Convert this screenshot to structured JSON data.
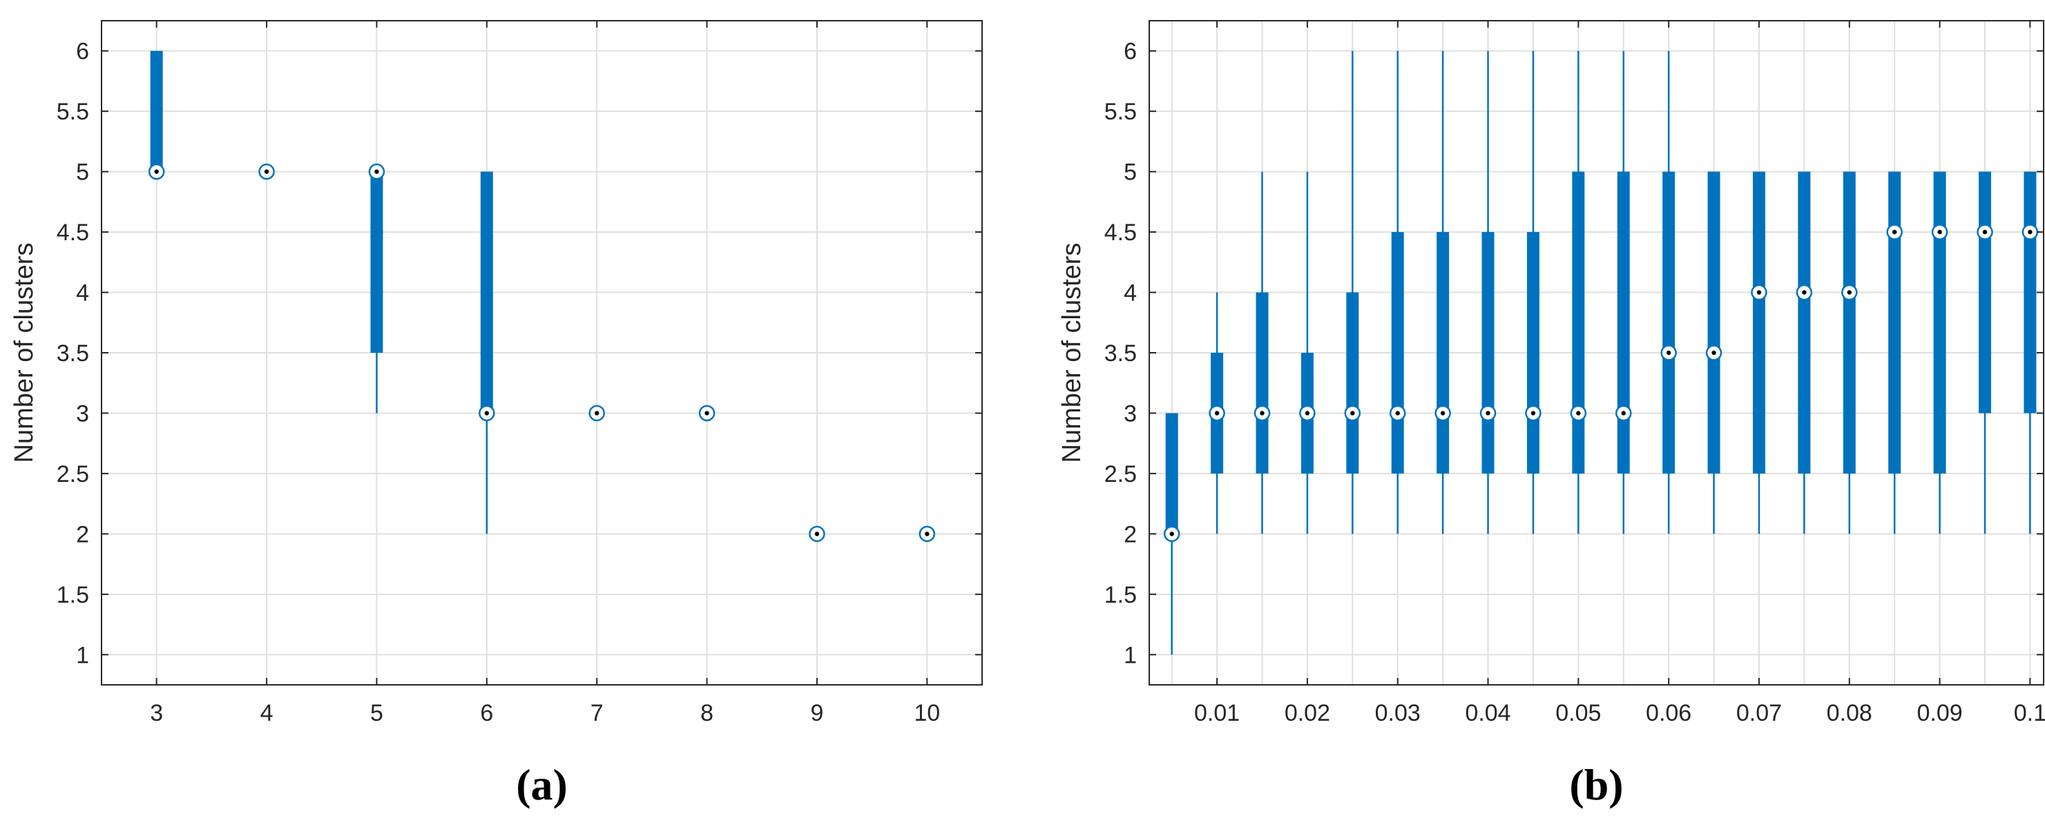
{
  "colors": {
    "box": "#0072BD",
    "grid": "#DFDFDF",
    "axis": "#262626",
    "median_dot": "#000000"
  },
  "chart_data": [
    {
      "type": "box",
      "panel_label": "(a)",
      "xlabel": "",
      "ylabel": "Number of clusters",
      "ylim": [
        0.75,
        6.25
      ],
      "yticks": [
        1,
        1.5,
        2,
        2.5,
        3,
        3.5,
        4,
        4.5,
        5,
        5.5,
        6
      ],
      "ytick_labels": [
        "1",
        "1.5",
        "2",
        "2.5",
        "3",
        "3.5",
        "4",
        "4.5",
        "5",
        "5.5",
        "6"
      ],
      "xlim": [
        2.5,
        10.5
      ],
      "xticks": [
        3,
        4,
        5,
        6,
        7,
        8,
        9,
        10
      ],
      "xtick_labels": [
        "3",
        "4",
        "5",
        "6",
        "7",
        "8",
        "9",
        "10"
      ],
      "grid": true,
      "boxes": [
        {
          "x": 3,
          "min": 5,
          "q1": 5,
          "median": 5,
          "q3": 6,
          "max": 6
        },
        {
          "x": 4,
          "min": 5,
          "q1": 5,
          "median": 5,
          "q3": 5,
          "max": 5
        },
        {
          "x": 5,
          "min": 3,
          "q1": 3.5,
          "median": 5,
          "q3": 5,
          "max": 5
        },
        {
          "x": 6,
          "min": 2,
          "q1": 3,
          "median": 3,
          "q3": 5,
          "max": 5
        },
        {
          "x": 7,
          "min": 3,
          "q1": 3,
          "median": 3,
          "q3": 3,
          "max": 3
        },
        {
          "x": 8,
          "min": 3,
          "q1": 3,
          "median": 3,
          "q3": 3,
          "max": 3
        },
        {
          "x": 9,
          "min": 2,
          "q1": 2,
          "median": 2,
          "q3": 2,
          "max": 2
        },
        {
          "x": 10,
          "min": 2,
          "q1": 2,
          "median": 2,
          "q3": 2,
          "max": 2
        }
      ]
    },
    {
      "type": "box",
      "panel_label": "(b)",
      "xlabel": "",
      "ylabel": "Number of clusters",
      "ylim": [
        0.75,
        6.25
      ],
      "yticks": [
        1,
        1.5,
        2,
        2.5,
        3,
        3.5,
        4,
        4.5,
        5,
        5.5,
        6
      ],
      "ytick_labels": [
        "1",
        "1.5",
        "2",
        "2.5",
        "3",
        "3.5",
        "4",
        "4.5",
        "5",
        "5.5",
        "6"
      ],
      "xlim": [
        0.0025,
        0.1015
      ],
      "xticks": [
        0.01,
        0.02,
        0.03,
        0.04,
        0.05,
        0.06,
        0.07,
        0.08,
        0.09,
        0.1
      ],
      "xtick_labels": [
        "0.01",
        "0.02",
        "0.03",
        "0.04",
        "0.05",
        "0.06",
        "0.07",
        "0.08",
        "0.09",
        "0.1"
      ],
      "minor_grid_x": [
        0.005,
        0.015,
        0.025,
        0.035,
        0.045,
        0.055,
        0.065,
        0.075,
        0.085,
        0.095
      ],
      "grid": true,
      "boxes": [
        {
          "x": 0.005,
          "min": 1,
          "q1": 2,
          "median": 2,
          "q3": 3,
          "max": 3
        },
        {
          "x": 0.01,
          "min": 2,
          "q1": 2.5,
          "median": 3,
          "q3": 3.5,
          "max": 4
        },
        {
          "x": 0.015,
          "min": 2,
          "q1": 2.5,
          "median": 3,
          "q3": 4,
          "max": 5
        },
        {
          "x": 0.02,
          "min": 2,
          "q1": 2.5,
          "median": 3,
          "q3": 3.5,
          "max": 5
        },
        {
          "x": 0.025,
          "min": 2,
          "q1": 2.5,
          "median": 3,
          "q3": 4,
          "max": 6
        },
        {
          "x": 0.03,
          "min": 2,
          "q1": 2.5,
          "median": 3,
          "q3": 4.5,
          "max": 6
        },
        {
          "x": 0.035,
          "min": 2,
          "q1": 2.5,
          "median": 3,
          "q3": 4.5,
          "max": 6
        },
        {
          "x": 0.04,
          "min": 2,
          "q1": 2.5,
          "median": 3,
          "q3": 4.5,
          "max": 6
        },
        {
          "x": 0.045,
          "min": 2,
          "q1": 2.5,
          "median": 3,
          "q3": 4.5,
          "max": 6
        },
        {
          "x": 0.05,
          "min": 2,
          "q1": 2.5,
          "median": 3,
          "q3": 5,
          "max": 6
        },
        {
          "x": 0.055,
          "min": 2,
          "q1": 2.5,
          "median": 3,
          "q3": 5,
          "max": 6
        },
        {
          "x": 0.06,
          "min": 2,
          "q1": 2.5,
          "median": 3.5,
          "q3": 5,
          "max": 6
        },
        {
          "x": 0.065,
          "min": 2,
          "q1": 2.5,
          "median": 3.5,
          "q3": 5,
          "max": 5
        },
        {
          "x": 0.07,
          "min": 2,
          "q1": 2.5,
          "median": 4,
          "q3": 5,
          "max": 5
        },
        {
          "x": 0.075,
          "min": 2,
          "q1": 2.5,
          "median": 4,
          "q3": 5,
          "max": 5
        },
        {
          "x": 0.08,
          "min": 2,
          "q1": 2.5,
          "median": 4,
          "q3": 5,
          "max": 5
        },
        {
          "x": 0.085,
          "min": 2,
          "q1": 2.5,
          "median": 4.5,
          "q3": 5,
          "max": 5
        },
        {
          "x": 0.09,
          "min": 2,
          "q1": 2.5,
          "median": 4.5,
          "q3": 5,
          "max": 5
        },
        {
          "x": 0.095,
          "min": 2,
          "q1": 3,
          "median": 4.5,
          "q3": 5,
          "max": 5
        },
        {
          "x": 0.1,
          "min": 2,
          "q1": 3,
          "median": 4.5,
          "q3": 5,
          "max": 5
        }
      ]
    }
  ]
}
